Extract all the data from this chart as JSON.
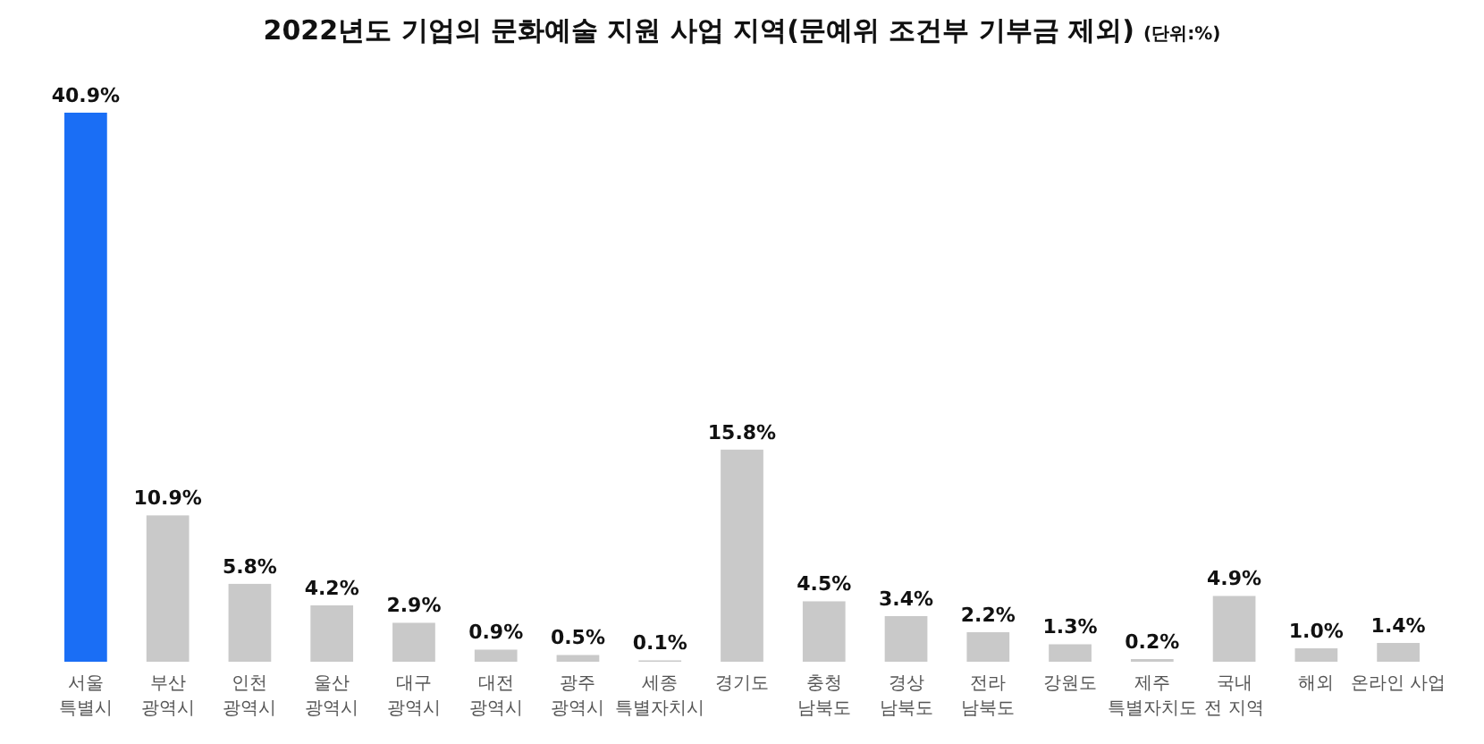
{
  "chart_data": {
    "type": "bar",
    "title": "2022년도 기업의 문화예술 지원 사업 지역(문예위 조건부 기부금 제외)",
    "subtitle": "(단위:%)",
    "categories": [
      "서울\n특별시",
      "부산\n광역시",
      "인천\n광역시",
      "울산\n광역시",
      "대구\n광역시",
      "대전\n광역시",
      "광주\n광역시",
      "세종\n특별자치시",
      "경기도",
      "충청\n남북도",
      "경상\n남북도",
      "전라\n남북도",
      "강원도",
      "제주\n특별자치도",
      "국내\n전 지역",
      "해외",
      "온라인 사업"
    ],
    "values": [
      40.9,
      10.9,
      5.8,
      4.2,
      2.9,
      0.9,
      0.5,
      0.1,
      15.8,
      4.5,
      3.4,
      2.2,
      1.3,
      0.2,
      4.9,
      1.0,
      1.4
    ],
    "colors": [
      "#1a6ef5",
      "#c9c9c9",
      "#c9c9c9",
      "#c9c9c9",
      "#c9c9c9",
      "#c9c9c9",
      "#c9c9c9",
      "#c9c9c9",
      "#c9c9c9",
      "#c9c9c9",
      "#c9c9c9",
      "#c9c9c9",
      "#c9c9c9",
      "#c9c9c9",
      "#c9c9c9",
      "#c9c9c9",
      "#c9c9c9"
    ],
    "value_labels": [
      "40.9%",
      "10.9%",
      "5.8%",
      "4.2%",
      "2.9%",
      "0.9%",
      "0.5%",
      "0.1%",
      "15.8%",
      "4.5%",
      "3.4%",
      "2.2%",
      "1.3%",
      "0.2%",
      "4.9%",
      "1.0%",
      "1.4%"
    ]
  }
}
